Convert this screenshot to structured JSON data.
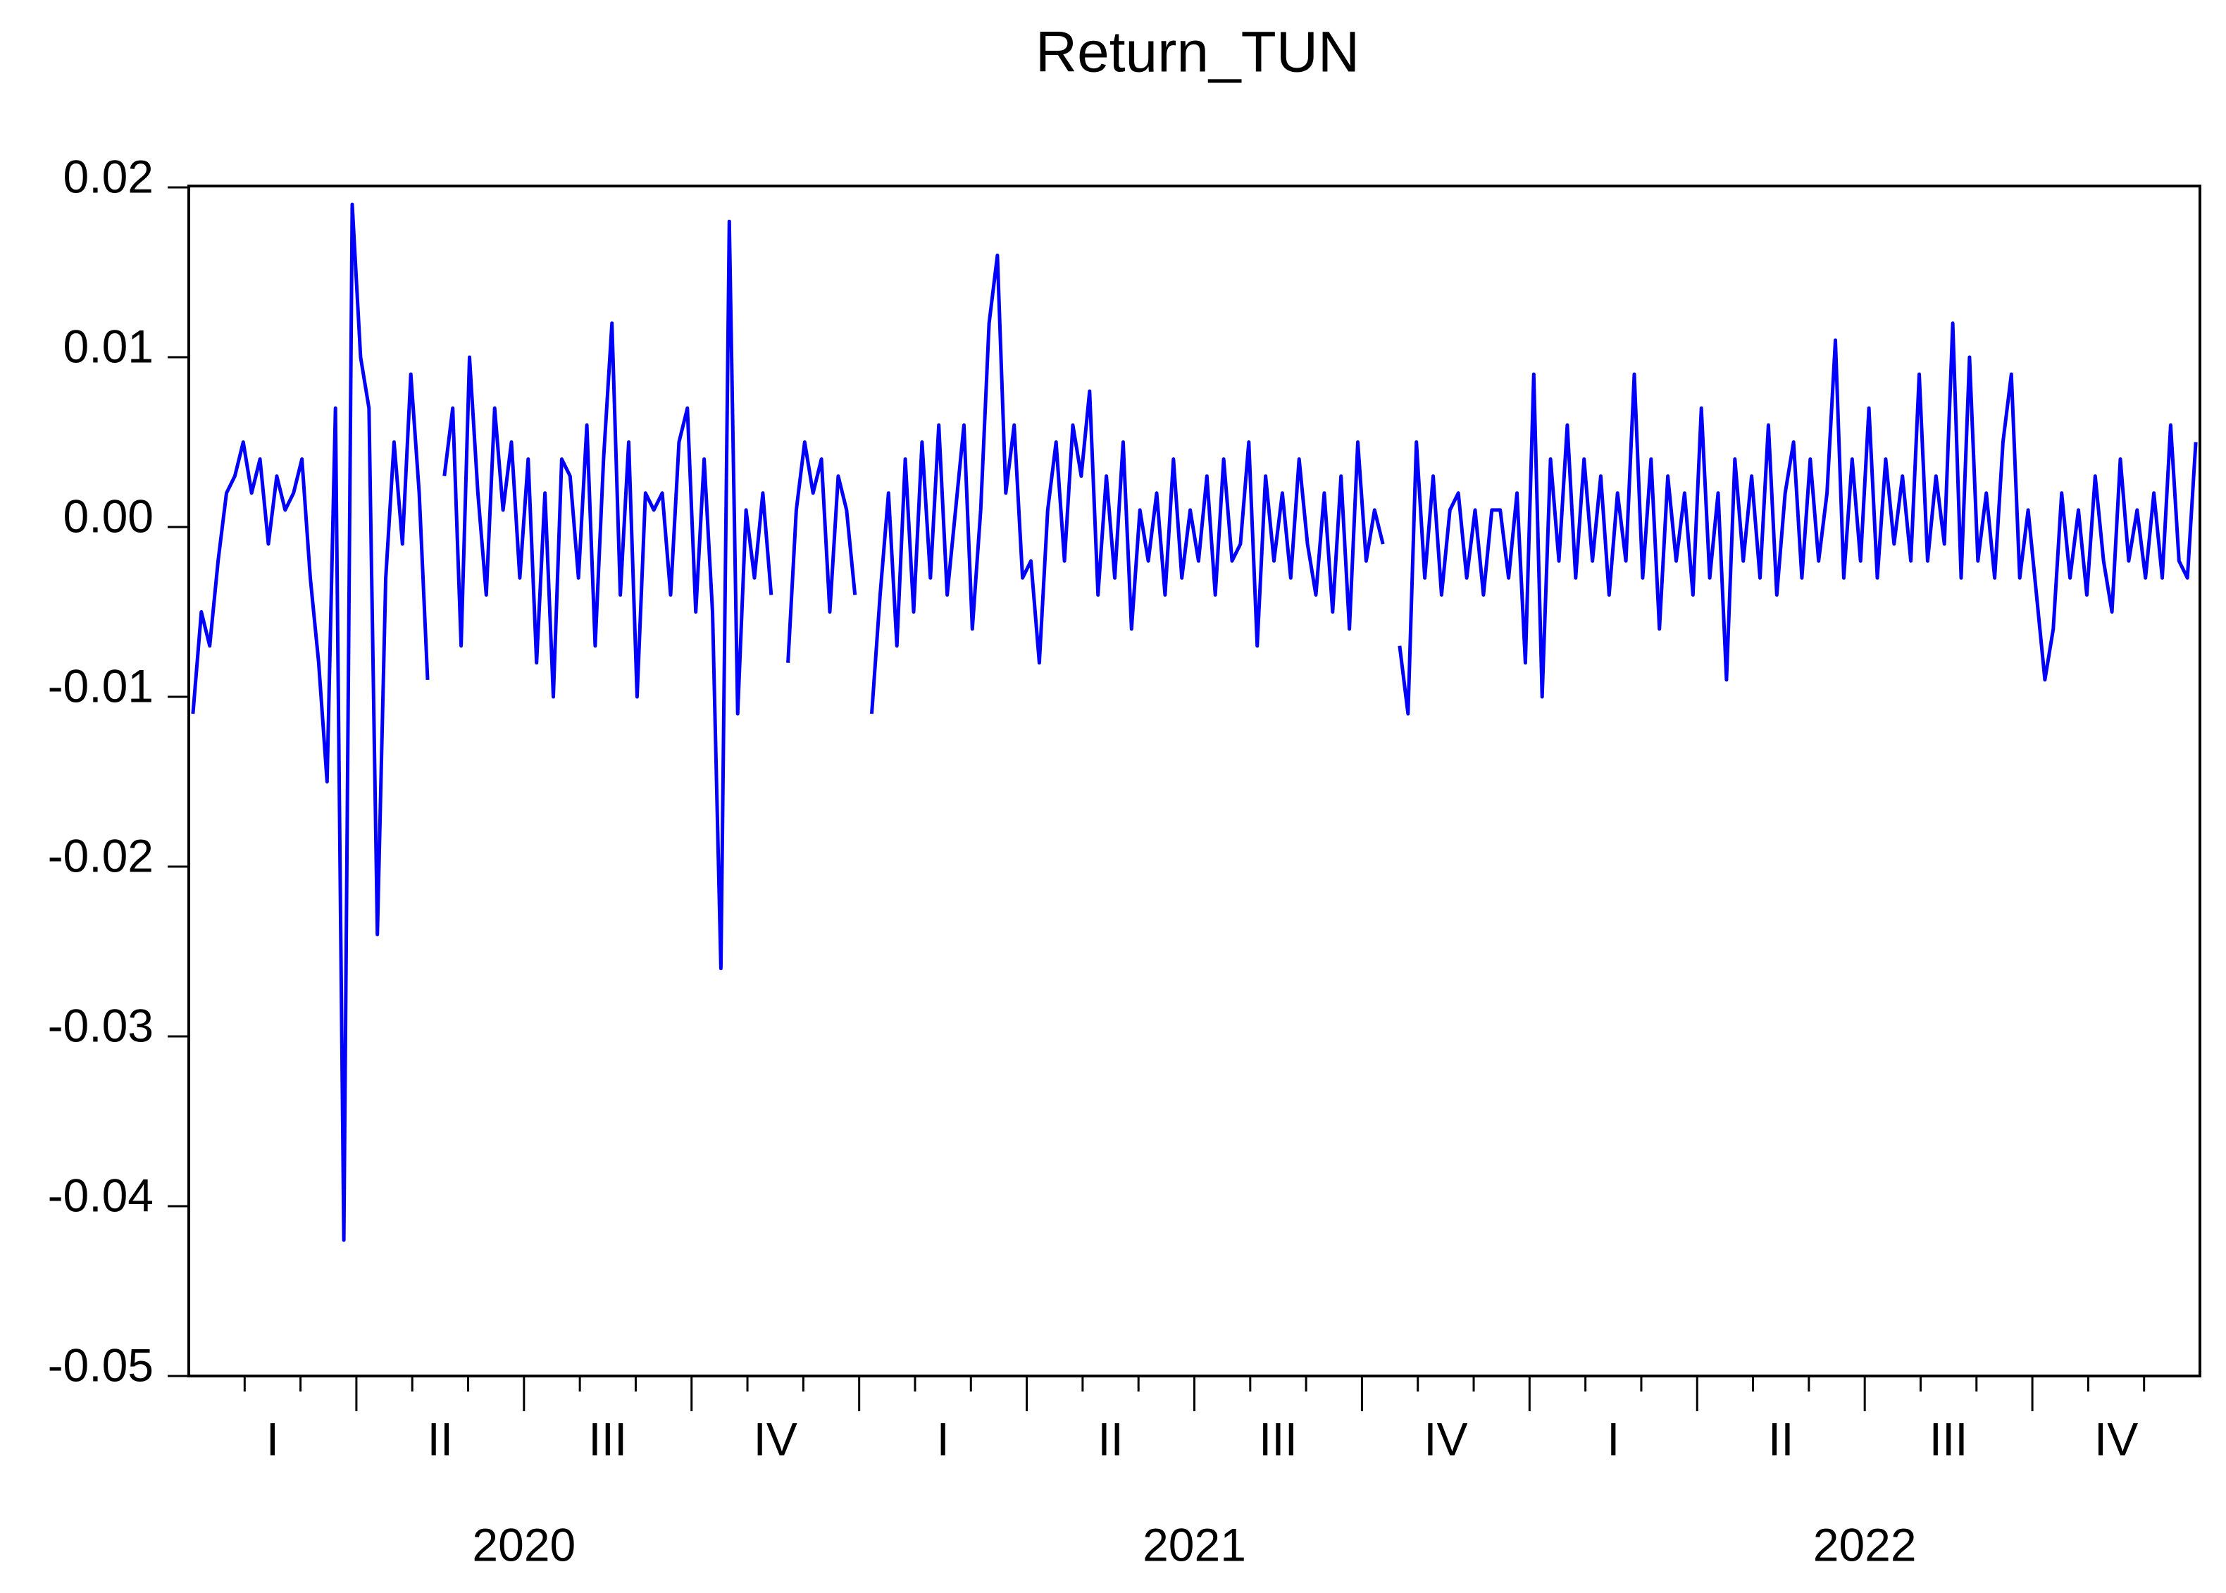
{
  "chart_data": {
    "type": "line",
    "title": "Return_TUN",
    "series": [
      {
        "name": "Return_TUN",
        "color": "#0000ff",
        "values": [
          -0.011,
          -0.005,
          -0.007,
          -0.002,
          0.002,
          0.003,
          0.005,
          0.002,
          0.004,
          -0.001,
          0.003,
          0.001,
          0.002,
          0.004,
          -0.003,
          -0.008,
          -0.015,
          0.007,
          -0.042,
          0.019,
          0.01,
          0.007,
          -0.024,
          -0.003,
          0.005,
          -0.001,
          0.009,
          0.002,
          -0.009,
          null,
          0.003,
          0.007,
          -0.007,
          0.01,
          0.002,
          -0.004,
          0.007,
          0.001,
          0.005,
          -0.003,
          0.004,
          -0.008,
          0.002,
          -0.01,
          0.004,
          0.003,
          -0.003,
          0.006,
          -0.007,
          0.004,
          0.012,
          -0.004,
          0.005,
          -0.01,
          0.002,
          0.001,
          0.002,
          -0.004,
          0.005,
          0.007,
          -0.005,
          0.004,
          -0.005,
          -0.026,
          0.018,
          -0.011,
          0.001,
          -0.003,
          0.002,
          -0.004,
          null,
          -0.008,
          0.001,
          0.005,
          0.002,
          0.004,
          -0.005,
          0.003,
          0.001,
          -0.004,
          null,
          -0.011,
          -0.004,
          0.002,
          -0.007,
          0.004,
          -0.005,
          0.005,
          -0.003,
          0.006,
          -0.004,
          0.001,
          0.006,
          -0.006,
          0.001,
          0.012,
          0.016,
          0.002,
          0.006,
          -0.003,
          -0.002,
          -0.008,
          0.001,
          0.005,
          -0.002,
          0.006,
          0.003,
          0.008,
          -0.004,
          0.003,
          -0.003,
          0.005,
          -0.006,
          0.001,
          -0.002,
          0.002,
          -0.004,
          0.004,
          -0.003,
          0.001,
          -0.002,
          0.003,
          -0.004,
          0.004,
          -0.002,
          -0.001,
          0.005,
          -0.007,
          0.003,
          -0.002,
          0.002,
          -0.003,
          0.004,
          -0.001,
          -0.004,
          0.002,
          -0.005,
          0.003,
          -0.006,
          0.005,
          -0.002,
          0.001,
          -0.001,
          null,
          -0.007,
          -0.011,
          0.005,
          -0.003,
          0.003,
          -0.004,
          0.001,
          0.002,
          -0.003,
          0.001,
          -0.004,
          0.001,
          0.001,
          -0.003,
          0.002,
          -0.008,
          0.009,
          -0.01,
          0.004,
          -0.002,
          0.006,
          -0.003,
          0.004,
          -0.002,
          0.003,
          -0.004,
          0.002,
          -0.002,
          0.009,
          -0.003,
          0.004,
          -0.006,
          0.003,
          -0.002,
          0.002,
          -0.004,
          0.007,
          -0.003,
          0.002,
          -0.009,
          0.004,
          -0.002,
          0.003,
          -0.003,
          0.006,
          -0.004,
          0.002,
          0.005,
          -0.003,
          0.004,
          -0.002,
          0.002,
          0.011,
          -0.003,
          0.004,
          -0.002,
          0.007,
          -0.003,
          0.004,
          -0.001,
          0.003,
          -0.002,
          0.009,
          -0.002,
          0.003,
          -0.001,
          0.012,
          -0.003,
          0.01,
          -0.002,
          0.002,
          -0.003,
          0.005,
          0.009,
          -0.003,
          0.001,
          -0.004,
          -0.009,
          -0.006,
          0.002,
          -0.003,
          0.001,
          -0.004,
          0.003,
          -0.002,
          -0.005,
          0.004,
          -0.002,
          0.001,
          -0.003,
          0.002,
          -0.003,
          0.006,
          -0.002,
          -0.003,
          0.005
        ]
      }
    ],
    "quarters": [
      "I",
      "II",
      "III",
      "IV",
      "I",
      "II",
      "III",
      "IV",
      "I",
      "II",
      "III",
      "IV"
    ],
    "years": [
      "2020",
      "2021",
      "2022"
    ],
    "ylim": [
      -0.05,
      0.02
    ],
    "yticks": [
      -0.05,
      -0.04,
      -0.03,
      -0.02,
      -0.01,
      {
        "value": 0,
        "label": "0.00"
      },
      0.01,
      0.02
    ]
  }
}
